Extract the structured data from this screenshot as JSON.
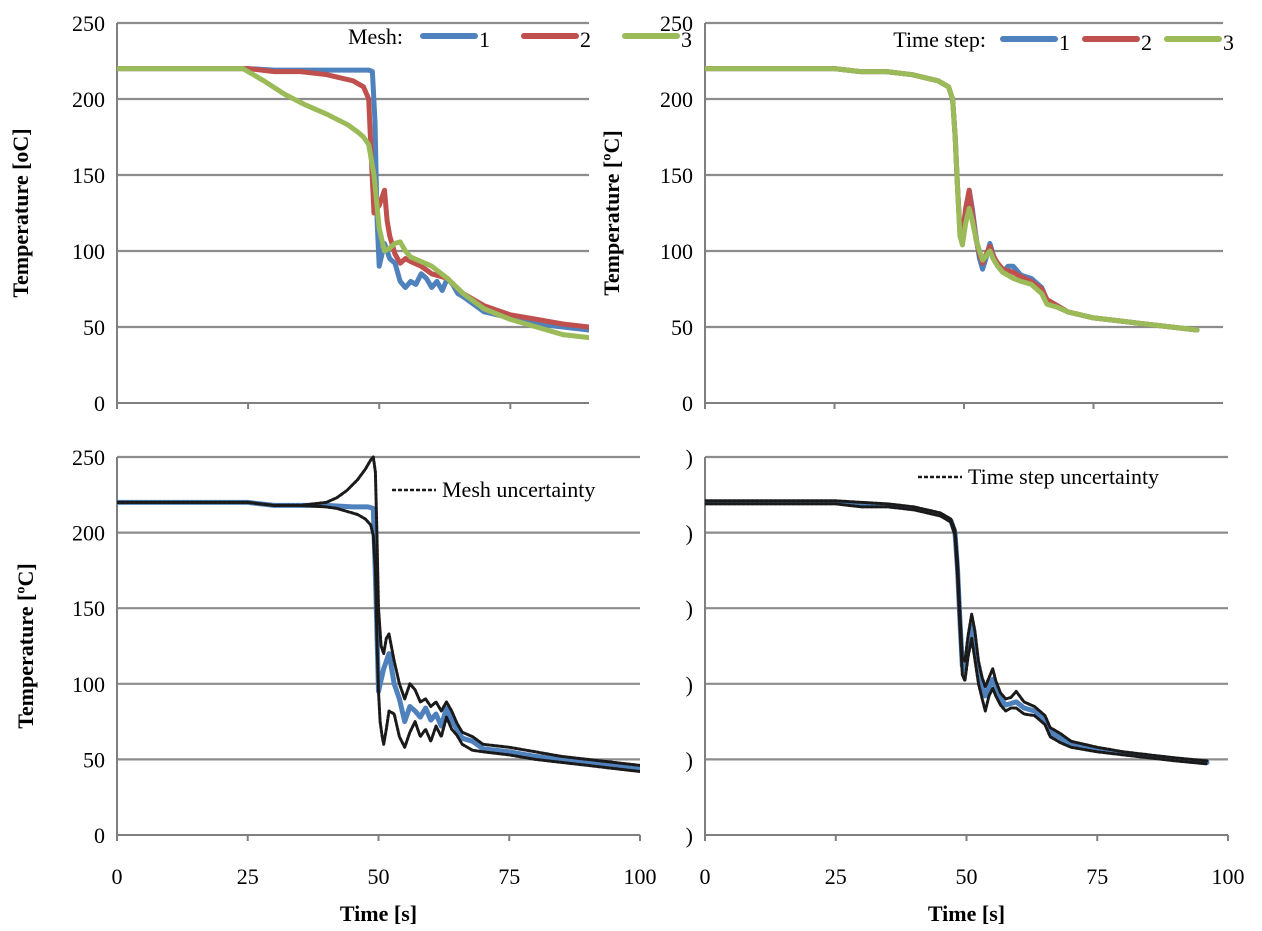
{
  "chart_data": [
    {
      "type": "line",
      "panel": "top-left",
      "xlabel": "",
      "ylabel": "Temperature [oC]",
      "xlim": [
        0,
        90
      ],
      "ylim": [
        0,
        250
      ],
      "yticks": [
        0,
        50,
        100,
        150,
        200,
        250
      ],
      "xticks": [
        0,
        25,
        50,
        75
      ],
      "show_x_tick_labels": false,
      "grid": true,
      "legend": {
        "title": "Mesh:",
        "placement": "top-right"
      },
      "series": [
        {
          "name": "1",
          "color": "#4f81bd",
          "x": [
            0,
            25,
            30,
            40,
            48,
            48.7,
            49.2,
            49.6,
            50,
            51,
            52,
            53,
            54,
            55,
            56,
            57,
            58,
            59,
            60,
            61,
            62,
            63,
            64,
            65,
            66,
            68,
            70,
            75,
            80,
            85,
            90
          ],
          "y": [
            220,
            220,
            219,
            219,
            219,
            218,
            185,
            120,
            90,
            105,
            95,
            92,
            80,
            76,
            80,
            78,
            85,
            82,
            76,
            80,
            74,
            82,
            78,
            72,
            70,
            65,
            60,
            56,
            52,
            50,
            48
          ]
        },
        {
          "name": "2",
          "color": "#c0504d",
          "x": [
            0,
            25,
            30,
            35,
            40,
            45,
            47,
            48,
            48.5,
            49,
            50,
            51,
            51.5,
            52,
            53,
            54,
            55,
            56,
            58,
            60,
            63,
            66,
            70,
            75,
            80,
            85,
            90
          ],
          "y": [
            220,
            220,
            218,
            218,
            216,
            212,
            208,
            200,
            160,
            125,
            130,
            140,
            120,
            110,
            98,
            92,
            95,
            93,
            90,
            85,
            82,
            72,
            64,
            58,
            55,
            52,
            50
          ]
        },
        {
          "name": "3",
          "color": "#9bbb59",
          "x": [
            0,
            24,
            28,
            32,
            36,
            40,
            44,
            46,
            47,
            48,
            49,
            50,
            51,
            52,
            53,
            54,
            55,
            56,
            58,
            60,
            63,
            66,
            70,
            75,
            80,
            85,
            90
          ],
          "y": [
            220,
            220,
            212,
            203,
            196,
            190,
            183,
            178,
            175,
            170,
            150,
            115,
            100,
            102,
            105,
            106,
            100,
            96,
            93,
            90,
            82,
            72,
            62,
            55,
            50,
            45,
            43
          ]
        }
      ]
    },
    {
      "type": "line",
      "panel": "top-right",
      "xlabel": "",
      "ylabel": "Temperature [ºC]",
      "xlim": [
        0,
        100
      ],
      "ylim": [
        0,
        250
      ],
      "yticks": [
        0,
        50,
        100,
        150,
        200,
        250
      ],
      "xticks": [
        0,
        25,
        50,
        75
      ],
      "show_x_tick_labels": false,
      "grid": true,
      "legend": {
        "title": "Time step:",
        "placement": "top-right"
      },
      "series": [
        {
          "name": "1",
          "color": "#4f81bd",
          "x": [
            0,
            25,
            30,
            35,
            40,
            45,
            47,
            47.8,
            48.3,
            48.7,
            49.2,
            49.7,
            50.3,
            51,
            51.6,
            52.3,
            53,
            53.6,
            54.3,
            55,
            55.6,
            56.5,
            57.5,
            58.5,
            59.5,
            61,
            63,
            65,
            66,
            68,
            70,
            75,
            80,
            85,
            90,
            95
          ],
          "y": [
            220,
            220,
            218,
            218,
            216,
            212,
            208,
            200,
            175,
            145,
            115,
            108,
            125,
            140,
            128,
            110,
            95,
            88,
            96,
            105,
            98,
            90,
            86,
            90,
            90,
            84,
            82,
            76,
            68,
            64,
            60,
            56,
            54,
            52,
            50,
            48
          ]
        },
        {
          "name": "2",
          "color": "#c0504d",
          "x": [
            0,
            25,
            30,
            35,
            40,
            45,
            47,
            47.8,
            48.3,
            48.7,
            49.2,
            49.7,
            50.3,
            51,
            51.6,
            52.3,
            53,
            53.6,
            54.3,
            55,
            55.6,
            56.5,
            57.5,
            58.5,
            59.5,
            61,
            63,
            65,
            66,
            68,
            70,
            75,
            80,
            85,
            90,
            95
          ],
          "y": [
            220,
            220,
            218,
            218,
            216,
            212,
            208,
            200,
            175,
            145,
            112,
            110,
            128,
            140,
            125,
            108,
            98,
            92,
            98,
            103,
            97,
            92,
            88,
            87,
            86,
            83,
            80,
            75,
            68,
            64,
            60,
            56,
            54,
            52,
            50,
            48
          ]
        },
        {
          "name": "3",
          "color": "#9bbb59",
          "x": [
            0,
            25,
            30,
            35,
            40,
            45,
            47,
            47.8,
            48.3,
            48.7,
            49.2,
            49.7,
            50.3,
            51,
            51.6,
            52.3,
            53,
            53.6,
            54.3,
            55,
            55.6,
            56.5,
            57.5,
            58.5,
            59.5,
            61,
            63,
            65,
            66,
            68,
            70,
            75,
            80,
            85,
            90,
            95
          ],
          "y": [
            220,
            220,
            218,
            218,
            216,
            212,
            208,
            200,
            175,
            145,
            110,
            104,
            118,
            128,
            120,
            108,
            100,
            94,
            97,
            100,
            95,
            90,
            86,
            84,
            82,
            80,
            78,
            72,
            65,
            63,
            60,
            56,
            54,
            52,
            50,
            48
          ]
        }
      ]
    },
    {
      "type": "line",
      "panel": "bottom-left",
      "xlabel": "Time [s]",
      "ylabel": "Temperature [ºC]",
      "xlim": [
        0,
        100
      ],
      "ylim": [
        0,
        250
      ],
      "yticks": [
        0,
        50,
        100,
        150,
        200,
        250
      ],
      "xticks": [
        0,
        25,
        50,
        75,
        100
      ],
      "show_x_tick_labels": true,
      "grid": true,
      "legend": {
        "title": "",
        "placement": "top-right",
        "entry": "Mesh uncertainty"
      },
      "series": [
        {
          "color": "#4f81bd",
          "x": [
            0,
            25,
            30,
            35,
            40,
            45,
            48,
            49,
            49.5,
            50,
            51,
            52,
            53,
            54,
            55,
            56,
            57,
            58,
            59,
            60,
            61,
            62,
            63,
            64,
            65,
            66,
            68,
            70,
            75,
            80,
            85,
            90,
            95,
            100
          ],
          "y": [
            220,
            220,
            218,
            218,
            218,
            217,
            217,
            216,
            160,
            95,
            110,
            120,
            100,
            90,
            75,
            85,
            82,
            78,
            84,
            76,
            80,
            72,
            84,
            76,
            70,
            64,
            62,
            57,
            55,
            52,
            50,
            48,
            46,
            44
          ]
        },
        {
          "name": "Mesh uncertainty (upper)",
          "color": "#1a1a1a",
          "x": [
            0,
            25,
            30,
            35,
            40,
            42,
            44,
            46,
            47.5,
            48.5,
            49,
            49.4,
            49.7,
            50,
            50.5,
            51,
            51.5,
            52,
            53,
            54,
            55,
            56,
            57,
            58,
            59,
            60,
            61,
            62,
            63,
            64,
            65,
            66,
            68,
            70,
            75,
            80,
            85,
            90,
            95,
            100
          ],
          "y": [
            220,
            220,
            218,
            218,
            220,
            223,
            228,
            235,
            242,
            248,
            250,
            240,
            200,
            150,
            125,
            120,
            130,
            133,
            115,
            100,
            90,
            100,
            96,
            88,
            90,
            85,
            88,
            82,
            88,
            82,
            74,
            68,
            65,
            60,
            58,
            55,
            52,
            50,
            48,
            46
          ]
        },
        {
          "name": "Mesh uncertainty (lower)",
          "color": "#1a1a1a",
          "x": [
            0,
            25,
            30,
            35,
            40,
            42,
            44,
            46,
            47.5,
            48.5,
            49,
            49.4,
            49.7,
            50,
            50.3,
            50.7,
            51,
            51.5,
            52,
            53,
            54,
            55,
            56,
            57,
            58,
            59,
            60,
            61,
            62,
            63,
            64,
            65,
            66,
            68,
            70,
            75,
            80,
            85,
            90,
            95,
            100
          ],
          "y": [
            220,
            220,
            218,
            218,
            217,
            216,
            214,
            212,
            209,
            205,
            198,
            175,
            130,
            95,
            75,
            65,
            60,
            70,
            82,
            80,
            65,
            58,
            68,
            75,
            65,
            70,
            62,
            72,
            65,
            78,
            70,
            66,
            60,
            56,
            55,
            53,
            50,
            48,
            46,
            44,
            42
          ]
        }
      ]
    },
    {
      "type": "line",
      "panel": "bottom-right",
      "xlabel": "Time [s]",
      "ylabel": "",
      "xlim": [
        0,
        100
      ],
      "ylim": [
        0,
        250
      ],
      "yticks": [
        0,
        50,
        100,
        150,
        200,
        250
      ],
      "ytick_labels_visible": [
        ")",
        ")",
        ")",
        ")",
        ")",
        ")"
      ],
      "xticks": [
        0,
        25,
        50,
        75,
        100
      ],
      "show_x_tick_labels": true,
      "grid": true,
      "legend": {
        "title": "",
        "placement": "top-right",
        "entry": "Time step uncertainty"
      },
      "series": [
        {
          "color": "#4f81bd",
          "x": [
            0,
            25,
            30,
            35,
            40,
            45,
            47,
            47.8,
            48.3,
            48.7,
            49.2,
            49.7,
            50.3,
            51,
            51.6,
            52.3,
            53,
            53.6,
            54.3,
            55,
            55.6,
            56.5,
            57.5,
            58.5,
            59.5,
            61,
            63,
            65,
            66,
            68,
            70,
            75,
            80,
            85,
            90,
            96
          ],
          "y": [
            220,
            220,
            218,
            218,
            216,
            212,
            208,
            200,
            175,
            145,
            112,
            108,
            125,
            138,
            125,
            108,
            98,
            92,
            98,
            103,
            97,
            90,
            86,
            87,
            88,
            84,
            82,
            76,
            68,
            64,
            60,
            57,
            54,
            52,
            50,
            48
          ]
        },
        {
          "name": "Time step uncertainty (upper)",
          "color": "#1a1a1a",
          "x": [
            0,
            25,
            30,
            35,
            40,
            45,
            47,
            47.8,
            48.3,
            48.7,
            49.2,
            49.7,
            50.3,
            51,
            51.6,
            52.3,
            53,
            53.6,
            54.3,
            55,
            55.6,
            56.5,
            57.5,
            58.5,
            59.5,
            61,
            63,
            65,
            66,
            68,
            70,
            75,
            80,
            85,
            90,
            96
          ],
          "y": [
            221,
            221,
            220,
            219,
            217,
            213,
            209,
            202,
            180,
            150,
            117,
            115,
            132,
            146,
            135,
            115,
            104,
            98,
            104,
            110,
            102,
            94,
            90,
            91,
            95,
            88,
            85,
            79,
            71,
            67,
            62,
            58,
            55,
            53,
            51,
            49
          ]
        },
        {
          "name": "Time step uncertainty (lower)",
          "color": "#1a1a1a",
          "x": [
            0,
            25,
            30,
            35,
            40,
            45,
            47,
            47.8,
            48.3,
            48.7,
            49.2,
            49.7,
            50.3,
            51,
            51.6,
            52.3,
            53,
            53.6,
            54.3,
            55,
            55.6,
            56.5,
            57.5,
            58.5,
            59.5,
            61,
            63,
            65,
            66,
            68,
            70,
            75,
            80,
            85,
            90,
            96
          ],
          "y": [
            219,
            219,
            217,
            217,
            215,
            211,
            207,
            198,
            170,
            140,
            106,
            102,
            118,
            130,
            116,
            100,
            90,
            82,
            92,
            97,
            92,
            86,
            82,
            84,
            84,
            80,
            79,
            73,
            65,
            61,
            58,
            55,
            53,
            51,
            49,
            47
          ]
        }
      ]
    }
  ]
}
